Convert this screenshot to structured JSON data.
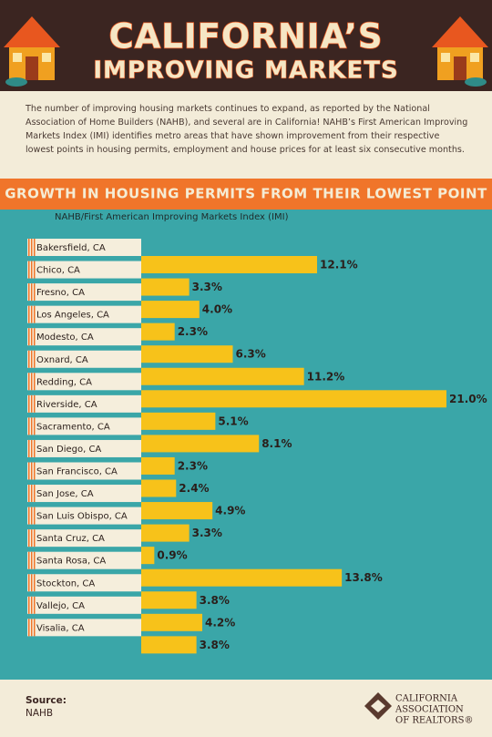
{
  "header": {
    "title_line1": "CALIFORNIA’S",
    "title_line2": "IMPROVING MARKETS"
  },
  "intro": "The number of improving housing markets continues to expand, as reported by the National Association of Home Builders (NAHB), and several are in California!  NAHB’s First American Improving Markets Index (IMI) identifies metro areas that have shown improvement from their respective lowest points in housing permits, employment and house prices for at least six consecutive months.",
  "chart_data": {
    "type": "bar",
    "title": "GROWTH IN HOUSING PERMITS FROM THEIR LOWEST POINT",
    "subtitle": "NAHB/First American Improving Markets Index (IMI)",
    "categories": [
      "Bakersfield, CA",
      "Chico, CA",
      "Fresno, CA",
      "Los Angeles, CA",
      "Modesto, CA",
      "Oxnard, CA",
      "Redding, CA",
      "Riverside, CA",
      "Sacramento, CA",
      "San Diego, CA",
      "San Francisco, CA",
      "San Jose, CA",
      "San Luis Obispo, CA",
      "Santa Cruz, CA",
      "Santa Rosa, CA",
      "Stockton, CA",
      "Vallejo, CA",
      "Visalia, CA"
    ],
    "values": [
      12.1,
      3.3,
      4.0,
      2.3,
      6.3,
      11.2,
      21.0,
      5.1,
      8.1,
      2.3,
      2.4,
      4.9,
      3.3,
      0.9,
      13.8,
      3.8,
      4.2,
      3.8
    ],
    "value_labels": [
      "12.1%",
      "3.3%",
      "4.0%",
      "2.3%",
      "6.3%",
      "11.2%",
      "21.0%",
      "5.1%",
      "8.1%",
      "2.3%",
      "2.4%",
      "4.9%",
      "3.3%",
      "0.9%",
      "13.8%",
      "3.8%",
      "4.2%",
      "3.8%"
    ],
    "color": "#f7c21a"
  },
  "footer": {
    "source_label": "Source:",
    "source": "NAHB",
    "logo_line1": "CALIFORNIA",
    "logo_line2": "ASSOCIATION",
    "logo_line3": "OF REALTORS®"
  }
}
